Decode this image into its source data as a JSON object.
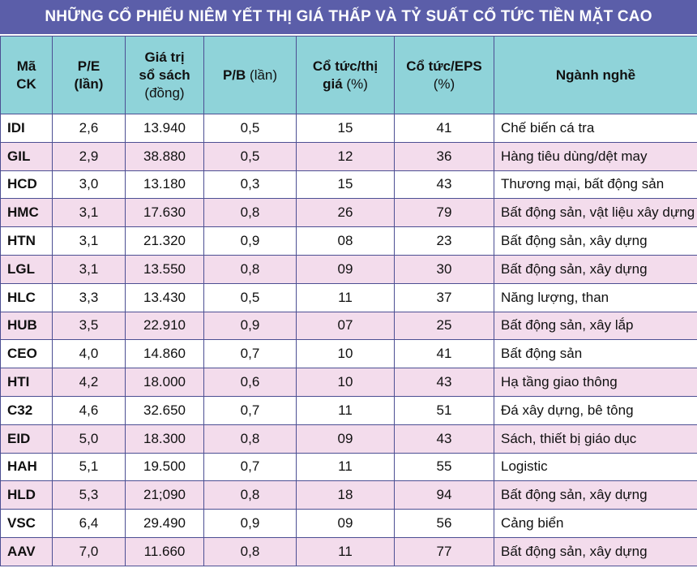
{
  "title": "NHỮNG CỔ PHIẾU NIÊM YẾT THỊ GIÁ THẤP VÀ TỶ SUẤT CỔ TỨC TIỀN MẶT CAO",
  "headers": {
    "code": [
      "Mã",
      "CK"
    ],
    "pe": [
      "P/E",
      "(lần)"
    ],
    "bv": [
      "Giá trị",
      "sổ sách",
      "(đồng)"
    ],
    "pb": [
      "P/B",
      "(lần)"
    ],
    "div_yield": [
      "Cổ tức/thị",
      "giá",
      "(%)"
    ],
    "div_eps": [
      "Cổ tức/EPS",
      "(%)"
    ],
    "sector": "Ngành nghề"
  },
  "rows": [
    {
      "code": "IDI",
      "pe": "2,6",
      "bv": "13.940",
      "pb": "0,5",
      "yield": "15",
      "eps": "41",
      "sector": "Chế biến cá tra"
    },
    {
      "code": "GIL",
      "pe": "2,9",
      "bv": "38.880",
      "pb": "0,5",
      "yield": "12",
      "eps": "36",
      "sector": "Hàng tiêu dùng/dệt may"
    },
    {
      "code": "HCD",
      "pe": "3,0",
      "bv": "13.180",
      "pb": "0,3",
      "yield": "15",
      "eps": "43",
      "sector": "Thương mại, bất động sản"
    },
    {
      "code": "HMC",
      "pe": "3,1",
      "bv": "17.630",
      "pb": "0,8",
      "yield": "26",
      "eps": "79",
      "sector": "Bất động sản, vật liệu xây dựng"
    },
    {
      "code": "HTN",
      "pe": "3,1",
      "bv": "21.320",
      "pb": "0,9",
      "yield": "08",
      "eps": "23",
      "sector": "Bất động sản, xây dựng"
    },
    {
      "code": "LGL",
      "pe": "3,1",
      "bv": "13.550",
      "pb": "0,8",
      "yield": "09",
      "eps": "30",
      "sector": "Bất động sản, xây dựng"
    },
    {
      "code": "HLC",
      "pe": "3,3",
      "bv": "13.430",
      "pb": "0,5",
      "yield": "11",
      "eps": "37",
      "sector": "Năng lượng, than"
    },
    {
      "code": "HUB",
      "pe": "3,5",
      "bv": "22.910",
      "pb": "0,9",
      "yield": "07",
      "eps": "25",
      "sector": "Bất động sản, xây lắp"
    },
    {
      "code": "CEO",
      "pe": "4,0",
      "bv": "14.860",
      "pb": "0,7",
      "yield": "10",
      "eps": "41",
      "sector": "Bất động sản"
    },
    {
      "code": "HTI",
      "pe": "4,2",
      "bv": "18.000",
      "pb": "0,6",
      "yield": "10",
      "eps": "43",
      "sector": "Hạ tầng giao thông"
    },
    {
      "code": "C32",
      "pe": "4,6",
      "bv": "32.650",
      "pb": "0,7",
      "yield": "11",
      "eps": "51",
      "sector": "Đá xây dựng, bê tông"
    },
    {
      "code": "EID",
      "pe": "5,0",
      "bv": "18.300",
      "pb": "0,8",
      "yield": "09",
      "eps": "43",
      "sector": "Sách, thiết bị giáo dục"
    },
    {
      "code": "HAH",
      "pe": "5,1",
      "bv": "19.500",
      "pb": "0,7",
      "yield": "11",
      "eps": "55",
      "sector": "Logistic"
    },
    {
      "code": "HLD",
      "pe": "5,3",
      "bv": "21;090",
      "pb": "0,8",
      "yield": "18",
      "eps": "94",
      "sector": "Bất động sản, xây dựng"
    },
    {
      "code": "VSC",
      "pe": "6,4",
      "bv": "29.490",
      "pb": "0,9",
      "yield": "09",
      "eps": "56",
      "sector": "Cảng biển"
    },
    {
      "code": "AAV",
      "pe": "7,0",
      "bv": "11.660",
      "pb": "0,8",
      "yield": "11",
      "eps": "77",
      "sector": "Bất động sản, xây dựng"
    }
  ]
}
